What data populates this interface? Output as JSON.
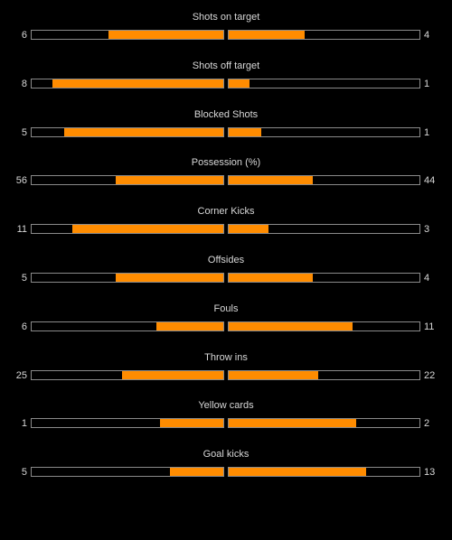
{
  "colors": {
    "background": "#000000",
    "bar_fill": "#ff8c00",
    "bar_border": "#8a8a8a",
    "text": "#d8d8d8"
  },
  "stats": [
    {
      "label": "Shots on target",
      "home": "6",
      "away": "4",
      "home_fraction": 0.6,
      "away_fraction": 0.4
    },
    {
      "label": "Shots off target",
      "home": "8",
      "away": "1",
      "home_fraction": 0.89,
      "away_fraction": 0.11
    },
    {
      "label": "Blocked Shots",
      "home": "5",
      "away": "1",
      "home_fraction": 0.83,
      "away_fraction": 0.17
    },
    {
      "label": "Possession (%)",
      "home": "56",
      "away": "44",
      "home_fraction": 0.56,
      "away_fraction": 0.44
    },
    {
      "label": "Corner Kicks",
      "home": "11",
      "away": "3",
      "home_fraction": 0.79,
      "away_fraction": 0.21
    },
    {
      "label": "Offsides",
      "home": "5",
      "away": "4",
      "home_fraction": 0.56,
      "away_fraction": 0.44
    },
    {
      "label": "Fouls",
      "home": "6",
      "away": "11",
      "home_fraction": 0.35,
      "away_fraction": 0.65
    },
    {
      "label": "Throw ins",
      "home": "25",
      "away": "22",
      "home_fraction": 0.53,
      "away_fraction": 0.47
    },
    {
      "label": "Yellow cards",
      "home": "1",
      "away": "2",
      "home_fraction": 0.33,
      "away_fraction": 0.67
    },
    {
      "label": "Goal kicks",
      "home": "5",
      "away": "13",
      "home_fraction": 0.28,
      "away_fraction": 0.72
    }
  ]
}
